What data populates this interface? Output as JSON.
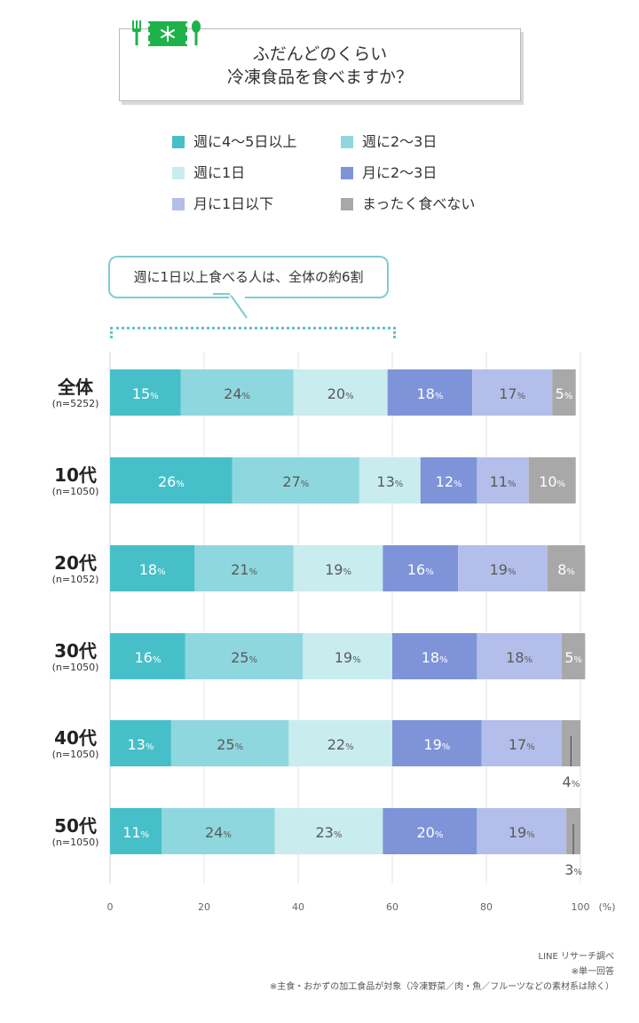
{
  "title": {
    "line1": "ふだんどのくらい",
    "line2": "冷凍食品を食べますか？"
  },
  "legend": [
    {
      "label": "週に4〜5日以上",
      "color": "#47bfc8"
    },
    {
      "label": "週に2〜3日",
      "color": "#8fd7de"
    },
    {
      "label": "週に1日",
      "color": "#c9ecef"
    },
    {
      "label": "月に2〜3日",
      "color": "#7e93d8"
    },
    {
      "label": "月に1日以下",
      "color": "#b3bfea"
    },
    {
      "label": "まったく食べない",
      "color": "#a8a8a8"
    }
  ],
  "callout": {
    "text": "週に1日以上食べる人は、全体の約6割"
  },
  "chart_data": {
    "type": "bar",
    "orientation": "horizontal",
    "stacked": true,
    "title": "ふだんどのくらい冷凍食品を食べますか？",
    "unit_label": "(%)",
    "value_suffix": "%",
    "xlim": [
      0,
      100
    ],
    "xticks": [
      0,
      20,
      40,
      60,
      80,
      100
    ],
    "categories": [
      {
        "name": "全体",
        "n": "(n=5252)"
      },
      {
        "name": "10代",
        "n": "(n=1050)"
      },
      {
        "name": "20代",
        "n": "(n=1052)"
      },
      {
        "name": "30代",
        "n": "(n=1050)"
      },
      {
        "name": "40代",
        "n": "(n=1050)"
      },
      {
        "name": "50代",
        "n": "(n=1050)"
      }
    ],
    "series": [
      {
        "name": "週に4〜5日以上",
        "values": [
          15,
          26,
          18,
          16,
          13,
          11
        ]
      },
      {
        "name": "週に2〜3日",
        "values": [
          24,
          27,
          21,
          25,
          25,
          24
        ]
      },
      {
        "name": "週に1日",
        "values": [
          20,
          13,
          19,
          19,
          22,
          23
        ]
      },
      {
        "name": "月に2〜3日",
        "values": [
          18,
          12,
          16,
          18,
          19,
          20
        ]
      },
      {
        "name": "月に1日以下",
        "values": [
          17,
          11,
          19,
          18,
          17,
          19
        ]
      },
      {
        "name": "まったく食べない",
        "values": [
          5,
          10,
          8,
          5,
          4,
          3
        ]
      }
    ]
  },
  "footnotes": [
    "LINE リサーチ調べ",
    "※単一回答",
    "※主食・おかずの加工食品が対象（冷凍野菜／肉・魚／フルーツなどの素材系は除く）"
  ]
}
